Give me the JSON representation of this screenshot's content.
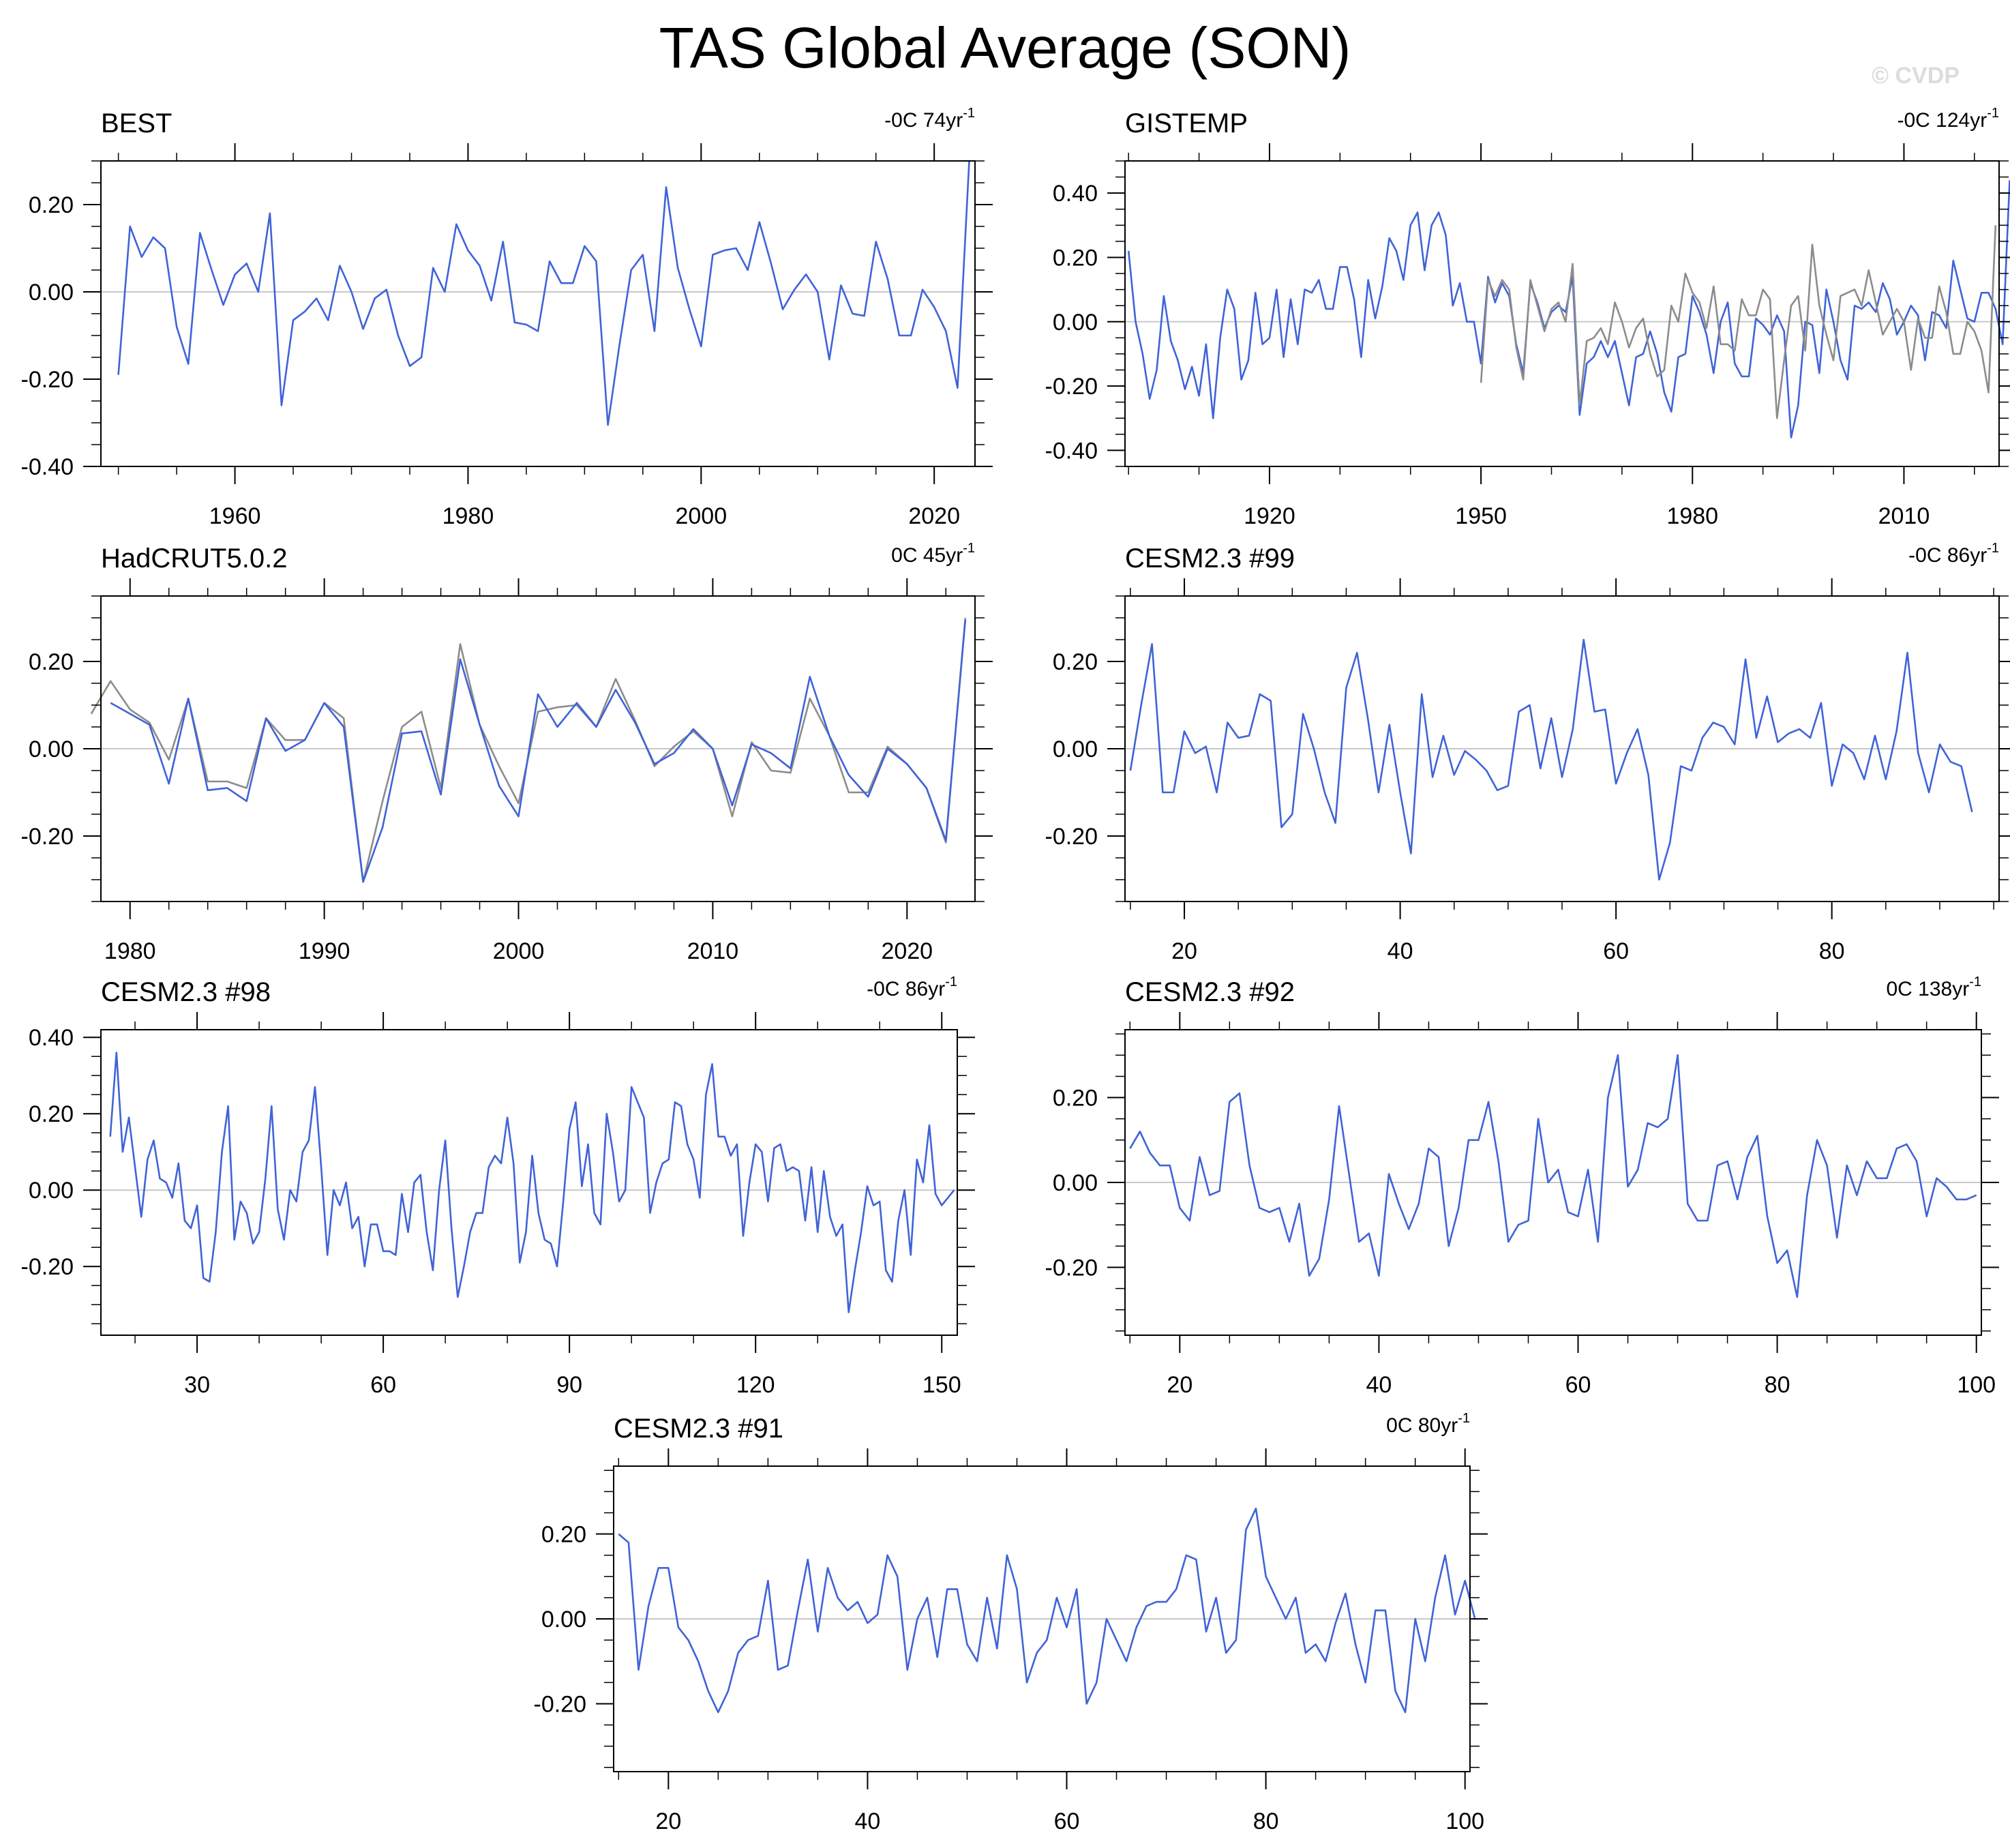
{
  "title": "TAS Global Average (SON)",
  "watermark": "© CVDP",
  "colors": {
    "primary_line": "#3f63d8",
    "reference_line": "#8c8c8c",
    "zero_line": "#c8c8c8",
    "frame": "#000000"
  },
  "chart_data": [
    {
      "type": "line",
      "title": "BEST",
      "trend_text": "-0C 74yr",
      "trend_sup": "-1",
      "xlim": [
        1948.5,
        2023.5
      ],
      "ylim": [
        -0.4,
        0.3
      ],
      "xticks": [
        1960,
        1980,
        2000,
        2020
      ],
      "xtick_labels": [
        "1960",
        "1980",
        "2000",
        "2020"
      ],
      "yticks": [
        -0.4,
        -0.2,
        0.0,
        0.2
      ],
      "ytick_labels": [
        "-0.40",
        "-0.20",
        "0.00",
        "0.20"
      ],
      "series": [
        {
          "name": "BEST",
          "color": "#3f63d8",
          "x0": 1950,
          "step": 1,
          "values": [
            -0.19,
            0.15,
            0.08,
            0.125,
            0.1,
            -0.08,
            -0.165,
            0.135,
            0.05,
            -0.03,
            0.04,
            0.065,
            0.0,
            0.18,
            -0.26,
            -0.065,
            -0.045,
            -0.015,
            -0.065,
            0.06,
            0.0,
            -0.085,
            -0.015,
            0.005,
            -0.1,
            -0.17,
            -0.15,
            0.055,
            0.0,
            0.155,
            0.095,
            0.06,
            -0.02,
            0.115,
            -0.07,
            -0.075,
            -0.09,
            0.07,
            0.02,
            0.02,
            0.105,
            0.07,
            -0.305,
            -0.12,
            0.05,
            0.085,
            -0.09,
            0.24,
            0.055,
            -0.04,
            -0.125,
            0.085,
            0.095,
            0.1,
            0.05,
            0.16,
            0.065,
            -0.04,
            0.005,
            0.04,
            0.0,
            -0.155,
            0.015,
            -0.05,
            -0.055,
            0.115,
            0.03,
            -0.1,
            -0.1,
            0.005,
            -0.035,
            -0.09,
            -0.22,
            0.3
          ]
        }
      ]
    },
    {
      "type": "line",
      "title": "GISTEMP",
      "trend_text": "-0C 124yr",
      "trend_sup": "-1",
      "xlim": [
        1899.5,
        2023.5
      ],
      "ylim": [
        -0.45,
        0.5
      ],
      "xticks": [
        1920,
        1950,
        1980,
        2010
      ],
      "xtick_labels": [
        "1920",
        "1950",
        "1980",
        "2010"
      ],
      "yticks": [
        -0.4,
        -0.2,
        0.0,
        0.2,
        0.4
      ],
      "ytick_labels": [
        "-0.40",
        "-0.20",
        "0.00",
        "0.20",
        "0.40"
      ],
      "series": [
        {
          "name": "GISTEMP",
          "color": "#3f63d8",
          "x0": 1900,
          "step": 1,
          "values": [
            0.22,
            0.0,
            -0.1,
            -0.24,
            -0.15,
            0.08,
            -0.06,
            -0.12,
            -0.21,
            -0.14,
            -0.23,
            -0.07,
            -0.3,
            -0.05,
            0.1,
            0.04,
            -0.18,
            -0.12,
            0.09,
            -0.07,
            -0.05,
            0.1,
            -0.11,
            0.07,
            -0.07,
            0.1,
            0.09,
            0.13,
            0.04,
            0.04,
            0.17,
            0.17,
            0.07,
            -0.11,
            0.13,
            0.01,
            0.11,
            0.26,
            0.22,
            0.13,
            0.3,
            0.34,
            0.16,
            0.3,
            0.34,
            0.27,
            0.05,
            0.12,
            0.0,
            0.0,
            -0.13,
            0.14,
            0.06,
            0.12,
            0.08,
            -0.07,
            -0.16,
            0.12,
            0.06,
            -0.02,
            0.03,
            0.05,
            0.03,
            0.14,
            -0.29,
            -0.13,
            -0.11,
            -0.06,
            -0.11,
            -0.06,
            -0.16,
            -0.26,
            -0.11,
            -0.1,
            -0.03,
            -0.1,
            -0.22,
            -0.28,
            -0.11,
            -0.1,
            0.08,
            0.03,
            -0.04,
            -0.16,
            0.0,
            0.06,
            -0.13,
            -0.17,
            -0.17,
            0.01,
            -0.01,
            -0.04,
            0.02,
            -0.03,
            -0.36,
            -0.26,
            0.0,
            -0.01,
            -0.16,
            0.1,
            0.0,
            -0.12,
            -0.18,
            0.05,
            0.04,
            0.06,
            0.03,
            0.12,
            0.07,
            -0.04,
            0.0,
            0.05,
            0.02,
            -0.12,
            0.03,
            0.02,
            -0.02,
            0.19,
            0.1,
            0.01,
            0.0,
            0.09,
            0.09,
            0.04,
            -0.07,
            0.44
          ]
        },
        {
          "name": "reference",
          "color": "#8c8c8c",
          "x0": 1950,
          "step": 1,
          "values": [
            -0.19,
            0.13,
            0.08,
            0.13,
            0.1,
            -0.08,
            -0.18,
            0.13,
            0.05,
            -0.03,
            0.04,
            0.06,
            0.0,
            0.18,
            -0.26,
            -0.06,
            -0.05,
            -0.02,
            -0.07,
            0.06,
            0.0,
            -0.08,
            -0.02,
            0.01,
            -0.1,
            -0.17,
            -0.15,
            0.05,
            0.0,
            0.15,
            0.09,
            0.06,
            -0.02,
            0.11,
            -0.07,
            -0.07,
            -0.09,
            0.07,
            0.02,
            0.02,
            0.1,
            0.07,
            -0.3,
            -0.12,
            0.05,
            0.08,
            -0.09,
            0.24,
            0.05,
            -0.04,
            -0.12,
            0.08,
            0.09,
            0.1,
            0.05,
            0.16,
            0.06,
            -0.04,
            0.0,
            0.04,
            0.0,
            -0.15,
            0.01,
            -0.05,
            -0.05,
            0.11,
            0.03,
            -0.1,
            -0.1,
            0.0,
            -0.03,
            -0.09,
            -0.22,
            0.3
          ]
        }
      ]
    },
    {
      "type": "line",
      "title": "HadCRUT5.0.2",
      "trend_text": "0C 45yr",
      "trend_sup": "-1",
      "xlim": [
        1978.5,
        2023.5
      ],
      "ylim": [
        -0.35,
        0.35
      ],
      "xticks": [
        1980,
        1990,
        2000,
        2010,
        2020
      ],
      "xtick_labels": [
        "1980",
        "1990",
        "2000",
        "2010",
        "2020"
      ],
      "yticks": [
        -0.2,
        0.0,
        0.2
      ],
      "ytick_labels": [
        "-0.20",
        "0.00",
        "0.20"
      ],
      "series": [
        {
          "name": "reference",
          "color": "#8c8c8c",
          "x0": 1978,
          "step": 1,
          "values": [
            0.08,
            0.155,
            0.09,
            0.06,
            -0.025,
            0.115,
            -0.075,
            -0.075,
            -0.09,
            0.07,
            0.02,
            0.02,
            0.105,
            0.07,
            -0.305,
            -0.12,
            0.05,
            0.085,
            -0.09,
            0.24,
            0.055,
            -0.04,
            -0.125,
            0.085,
            0.095,
            0.1,
            0.05,
            0.16,
            0.065,
            -0.04,
            0.005,
            0.04,
            0.0,
            -0.155,
            0.015,
            -0.05,
            -0.055,
            0.115,
            0.03,
            -0.1,
            -0.1,
            0.005,
            -0.035,
            -0.09,
            -0.215,
            0.3
          ]
        },
        {
          "name": "HadCRUT5.0.2",
          "color": "#3f63d8",
          "x0": 1979,
          "step": 1,
          "values": [
            0.105,
            0.08,
            0.055,
            -0.08,
            0.115,
            -0.095,
            -0.09,
            -0.12,
            0.07,
            -0.005,
            0.02,
            0.105,
            0.05,
            -0.305,
            -0.18,
            0.035,
            0.04,
            -0.105,
            0.205,
            0.055,
            -0.085,
            -0.155,
            0.125,
            0.05,
            0.105,
            0.05,
            0.135,
            0.06,
            -0.035,
            -0.01,
            0.045,
            0.0,
            -0.13,
            0.01,
            -0.01,
            -0.045,
            0.165,
            0.03,
            -0.06,
            -0.11,
            0.0,
            -0.035,
            -0.09,
            -0.21,
            0.295
          ]
        }
      ]
    },
    {
      "type": "line",
      "title": "CESM2.3 #99",
      "trend_text": "-0C 86yr",
      "trend_sup": "-1",
      "xlim": [
        14.5,
        95.5
      ],
      "ylim": [
        -0.35,
        0.35
      ],
      "xticks": [
        20,
        40,
        60,
        80
      ],
      "xtick_labels": [
        "20",
        "40",
        "60",
        "80"
      ],
      "yticks": [
        -0.2,
        0.0,
        0.2
      ],
      "ytick_labels": [
        "-0.20",
        "0.00",
        "0.20"
      ],
      "series": [
        {
          "name": "CESM2.3 #99",
          "color": "#3f63d8",
          "x0": 15,
          "step": 1,
          "values": [
            -0.05,
            0.1,
            0.24,
            -0.1,
            -0.1,
            0.04,
            -0.01,
            0.005,
            -0.1,
            0.06,
            0.025,
            0.03,
            0.125,
            0.11,
            -0.18,
            -0.15,
            0.08,
            0.0,
            -0.1,
            -0.17,
            0.14,
            0.22,
            0.07,
            -0.1,
            0.055,
            -0.1,
            -0.24,
            0.125,
            -0.065,
            0.03,
            -0.06,
            -0.005,
            -0.025,
            -0.05,
            -0.095,
            -0.085,
            0.085,
            0.1,
            -0.045,
            0.07,
            -0.065,
            0.045,
            0.25,
            0.085,
            0.09,
            -0.08,
            -0.01,
            0.045,
            -0.06,
            -0.3,
            -0.215,
            -0.04,
            -0.05,
            0.025,
            0.06,
            0.05,
            0.01,
            0.205,
            0.025,
            0.12,
            0.015,
            0.035,
            0.045,
            0.025,
            0.105,
            -0.085,
            0.01,
            -0.01,
            -0.07,
            0.03,
            -0.07,
            0.04,
            0.22,
            -0.01,
            -0.1,
            0.01,
            -0.03,
            -0.04,
            -0.145
          ]
        }
      ]
    },
    {
      "type": "line",
      "title": "CESM2.3 #98",
      "trend_text": "-0C 86yr",
      "trend_sup": "-1",
      "xlim": [
        14.5,
        152.5
      ],
      "ylim": [
        -0.38,
        0.42
      ],
      "xticks": [
        30,
        60,
        90,
        120,
        150
      ],
      "xtick_labels": [
        "30",
        "60",
        "90",
        "120",
        "150"
      ],
      "yticks": [
        -0.2,
        0.0,
        0.2,
        0.4
      ],
      "ytick_labels": [
        "-0.20",
        "0.00",
        "0.20",
        "0.40"
      ],
      "series": [
        {
          "name": "CESM2.3 #98",
          "color": "#3f63d8",
          "x0": 16,
          "step": 1,
          "values": [
            0.14,
            0.36,
            0.1,
            0.19,
            0.06,
            -0.07,
            0.08,
            0.13,
            0.03,
            0.02,
            -0.02,
            0.07,
            -0.08,
            -0.1,
            -0.04,
            -0.23,
            -0.24,
            -0.11,
            0.1,
            0.22,
            -0.13,
            -0.03,
            -0.06,
            -0.14,
            -0.11,
            0.03,
            0.22,
            -0.05,
            -0.13,
            0.0,
            -0.03,
            0.1,
            0.13,
            0.27,
            0.06,
            -0.17,
            0.0,
            -0.04,
            0.02,
            -0.1,
            -0.07,
            -0.2,
            -0.09,
            -0.09,
            -0.16,
            -0.16,
            -0.17,
            -0.01,
            -0.11,
            0.02,
            0.04,
            -0.11,
            -0.21,
            0.0,
            0.13,
            -0.1,
            -0.28,
            -0.2,
            -0.11,
            -0.06,
            -0.06,
            0.06,
            0.09,
            0.07,
            0.19,
            0.07,
            -0.19,
            -0.11,
            0.09,
            -0.06,
            -0.13,
            -0.14,
            -0.2,
            -0.03,
            0.16,
            0.23,
            0.01,
            0.12,
            -0.06,
            -0.09,
            0.2,
            0.1,
            -0.03,
            0.0,
            0.27,
            0.23,
            0.19,
            -0.06,
            0.02,
            0.07,
            0.08,
            0.23,
            0.22,
            0.12,
            0.08,
            -0.02,
            0.25,
            0.33,
            0.14,
            0.14,
            0.09,
            0.12,
            -0.12,
            0.02,
            0.12,
            0.1,
            -0.03,
            0.11,
            0.12,
            0.05,
            0.06,
            0.05,
            -0.08,
            0.06,
            -0.11,
            0.05,
            -0.07,
            -0.12,
            -0.09,
            -0.32,
            -0.21,
            -0.11,
            0.01,
            -0.04,
            -0.03,
            -0.21,
            -0.24,
            -0.08,
            0.0,
            -0.17,
            0.08,
            0.02,
            0.17,
            -0.01,
            -0.04,
            -0.02,
            0.0
          ]
        }
      ]
    },
    {
      "type": "line",
      "title": "CESM2.3 #92",
      "trend_text": "0C 138yr",
      "trend_sup": "-1",
      "xlim": [
        14.5,
        100.5
      ],
      "ylim": [
        -0.36,
        0.36
      ],
      "xticks": [
        20,
        40,
        60,
        80,
        100
      ],
      "xtick_labels": [
        "20",
        "40",
        "60",
        "80",
        "100"
      ],
      "yticks": [
        -0.2,
        0.0,
        0.2
      ],
      "ytick_labels": [
        "-0.20",
        "0.00",
        "0.20"
      ],
      "series": [
        {
          "name": "CESM2.3 #92",
          "color": "#3f63d8",
          "x0": 15,
          "step": 1,
          "values": [
            0.08,
            0.12,
            0.07,
            0.04,
            0.04,
            -0.06,
            -0.09,
            0.06,
            -0.03,
            -0.02,
            0.19,
            0.21,
            0.04,
            -0.06,
            -0.07,
            -0.06,
            -0.14,
            -0.05,
            -0.22,
            -0.18,
            -0.04,
            0.18,
            0.02,
            -0.14,
            -0.12,
            -0.22,
            0.02,
            -0.05,
            -0.11,
            -0.05,
            0.08,
            0.06,
            -0.15,
            -0.06,
            0.1,
            0.1,
            0.19,
            0.05,
            -0.14,
            -0.1,
            -0.09,
            0.15,
            0.0,
            0.03,
            -0.07,
            -0.08,
            0.03,
            -0.14,
            0.2,
            0.3,
            -0.01,
            0.03,
            0.14,
            0.13,
            0.15,
            0.3,
            -0.05,
            -0.09,
            -0.09,
            0.04,
            0.05,
            -0.04,
            0.06,
            0.11,
            -0.08,
            -0.19,
            -0.16,
            -0.27,
            -0.03,
            0.1,
            0.04,
            -0.13,
            0.04,
            -0.03,
            0.05,
            0.01,
            0.01,
            0.08,
            0.09,
            0.05,
            -0.08,
            0.01,
            -0.01,
            -0.04,
            -0.04,
            -0.03
          ]
        }
      ]
    },
    {
      "type": "line",
      "title": "CESM2.3 #91",
      "trend_text": "0C 80yr",
      "trend_sup": "-1",
      "xlim": [
        14.5,
        100.5
      ],
      "ylim": [
        -0.36,
        0.36
      ],
      "xticks": [
        20,
        40,
        60,
        80,
        100
      ],
      "xtick_labels": [
        "20",
        "40",
        "60",
        "80",
        "100"
      ],
      "yticks": [
        -0.2,
        0.0,
        0.2
      ],
      "ytick_labels": [
        "-0.20",
        "0.00",
        "0.20"
      ],
      "series": [
        {
          "name": "CESM2.3 #91",
          "color": "#3f63d8",
          "x0": 15,
          "step": 1,
          "values": [
            0.2,
            0.18,
            -0.12,
            0.03,
            0.12,
            0.12,
            -0.02,
            -0.05,
            -0.1,
            -0.17,
            -0.22,
            -0.17,
            -0.08,
            -0.05,
            -0.04,
            0.09,
            -0.12,
            -0.11,
            0.02,
            0.14,
            -0.03,
            0.12,
            0.05,
            0.02,
            0.04,
            -0.01,
            0.01,
            0.15,
            0.1,
            -0.12,
            0.0,
            0.05,
            -0.09,
            0.07,
            0.07,
            -0.06,
            -0.1,
            0.05,
            -0.07,
            0.15,
            0.07,
            -0.15,
            -0.08,
            -0.05,
            0.05,
            -0.02,
            0.07,
            -0.2,
            -0.15,
            0.0,
            -0.05,
            -0.1,
            -0.02,
            0.03,
            0.04,
            0.04,
            0.07,
            0.15,
            0.14,
            -0.03,
            0.05,
            -0.08,
            -0.05,
            0.21,
            0.26,
            0.1,
            0.05,
            0.0,
            0.05,
            -0.08,
            -0.06,
            -0.1,
            -0.01,
            0.06,
            -0.06,
            -0.15,
            0.02,
            0.02,
            -0.17,
            -0.22,
            0.0,
            -0.1,
            0.05,
            0.15,
            0.01,
            0.09,
            0.0
          ]
        }
      ]
    }
  ]
}
